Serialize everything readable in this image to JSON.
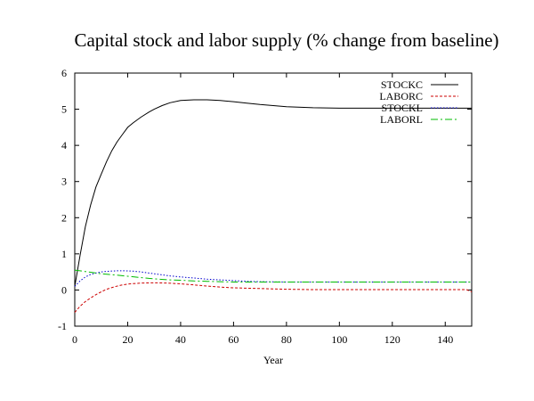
{
  "chart_data": {
    "type": "line",
    "title": "Capital stock and labor supply (% change from baseline)",
    "xlabel": "Year",
    "ylabel": "",
    "xlim": [
      0,
      150
    ],
    "ylim": [
      -1,
      6
    ],
    "xticks": [
      0,
      20,
      40,
      60,
      80,
      100,
      120,
      140
    ],
    "yticks": [
      -1,
      0,
      1,
      2,
      3,
      4,
      5,
      6
    ],
    "grid": false,
    "legend_position": "top-right",
    "series": [
      {
        "name": "STOCKC",
        "color": "#000000",
        "dash": "solid",
        "x": [
          0,
          2,
          4,
          6,
          8,
          10,
          12,
          14,
          16,
          18,
          20,
          22,
          25,
          28,
          30,
          33,
          36,
          40,
          45,
          50,
          55,
          60,
          65,
          70,
          75,
          80,
          90,
          100,
          110,
          120,
          130,
          140,
          150
        ],
        "y": [
          0.1,
          0.95,
          1.75,
          2.35,
          2.85,
          3.2,
          3.55,
          3.85,
          4.1,
          4.3,
          4.5,
          4.62,
          4.78,
          4.92,
          5.0,
          5.1,
          5.18,
          5.24,
          5.26,
          5.26,
          5.24,
          5.21,
          5.17,
          5.13,
          5.1,
          5.07,
          5.04,
          5.03,
          5.03,
          5.03,
          5.03,
          5.03,
          5.03
        ]
      },
      {
        "name": "LABORC",
        "color": "#cc0000",
        "dash": "3,2",
        "x": [
          0,
          2,
          4,
          6,
          8,
          10,
          12,
          15,
          18,
          21,
          25,
          30,
          35,
          40,
          45,
          50,
          55,
          60,
          65,
          70,
          75,
          80,
          90,
          100,
          120,
          140,
          148,
          150
        ],
        "y": [
          -0.62,
          -0.45,
          -0.32,
          -0.22,
          -0.13,
          -0.05,
          0.02,
          0.09,
          0.14,
          0.17,
          0.19,
          0.2,
          0.19,
          0.17,
          0.14,
          0.11,
          0.08,
          0.06,
          0.05,
          0.04,
          0.03,
          0.02,
          0.01,
          0.01,
          0.01,
          0.01,
          0.01,
          -0.05
        ]
      },
      {
        "name": "STOCKL",
        "color": "#0000cc",
        "dash": "1.5,2",
        "x": [
          0,
          2,
          4,
          6,
          8,
          10,
          13,
          16,
          19,
          22,
          25,
          28,
          32,
          36,
          40,
          45,
          50,
          55,
          60,
          65,
          70,
          80,
          90,
          100,
          120,
          140,
          150
        ],
        "y": [
          0.1,
          0.25,
          0.36,
          0.43,
          0.47,
          0.5,
          0.52,
          0.53,
          0.53,
          0.52,
          0.5,
          0.47,
          0.43,
          0.39,
          0.36,
          0.33,
          0.3,
          0.28,
          0.26,
          0.24,
          0.23,
          0.22,
          0.22,
          0.22,
          0.22,
          0.22,
          0.22
        ]
      },
      {
        "name": "LABORL",
        "color": "#00bb00",
        "dash": "8,3,2,3",
        "x": [
          0,
          2,
          4,
          6,
          8,
          10,
          13,
          16,
          20,
          24,
          28,
          32,
          36,
          40,
          45,
          50,
          55,
          60,
          70,
          80,
          90,
          100,
          120,
          140,
          150
        ],
        "y": [
          0.55,
          0.53,
          0.51,
          0.49,
          0.47,
          0.45,
          0.43,
          0.41,
          0.38,
          0.35,
          0.32,
          0.3,
          0.28,
          0.27,
          0.25,
          0.24,
          0.23,
          0.22,
          0.22,
          0.22,
          0.22,
          0.22,
          0.22,
          0.22,
          0.22
        ]
      }
    ]
  }
}
